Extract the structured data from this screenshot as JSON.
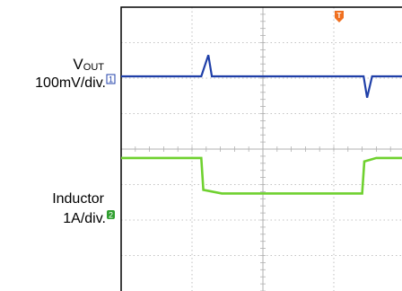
{
  "labels": {
    "ch1_name": "V",
    "ch1_sub": "OUT",
    "ch1_scale": "100mV/div.",
    "ch2_name": "Inductor",
    "ch2_scale": "1A/div."
  },
  "markers": {
    "ch1": "1",
    "ch2": "2",
    "trigger": "T"
  },
  "colors": {
    "ch1": "#1f3fa8",
    "ch2": "#6fd12f",
    "trigger": "#f07020",
    "grid": "#b0b0b0",
    "frame": "#000000"
  },
  "chart_data": {
    "type": "line",
    "title": "",
    "xlabel": "",
    "ylabel": "",
    "grid": true,
    "divisions": {
      "x": 5,
      "y": 8
    },
    "xlim": [
      0,
      5
    ],
    "ylim": [
      -4,
      4
    ],
    "series": [
      {
        "x": [
          0,
          1.13,
          1.23,
          1.28,
          1.35,
          2.5,
          3.42,
          3.47,
          3.54,
          5
        ],
        "values": [
          2.05,
          2.05,
          2.65,
          2.05,
          2.05,
          2.05,
          2.05,
          1.45,
          2.05,
          2.05
        ]
      },
      {
        "x": [
          0,
          1.13,
          1.16,
          1.42,
          3.4,
          3.43,
          3.6,
          5
        ],
        "values": [
          -0.25,
          -0.25,
          -1.15,
          -1.25,
          -1.25,
          -0.35,
          -0.25,
          -0.25
        ]
      }
    ]
  }
}
